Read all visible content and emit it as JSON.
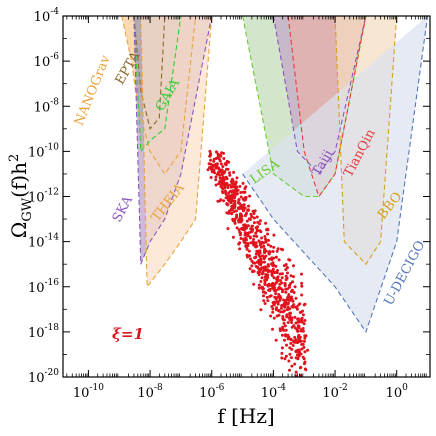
{
  "chart_data": {
    "type": "area",
    "xlabel": "f [Hz]",
    "ylabel": "Ω_GW(f)h^2",
    "x_scale": "log",
    "y_scale": "log",
    "xlim": [
      1.5e-11,
      12
    ],
    "ylim": [
      1e-20,
      0.0001
    ],
    "x_tick_labels": [
      "10^{-10}",
      "10^{-8}",
      "10^{-6}",
      "10^{-4}",
      "10^{-2}",
      "10^{0}"
    ],
    "x_ticks": [
      1e-10,
      1e-08,
      1e-06,
      0.0001,
      0.01,
      1
    ],
    "y_tick_labels": [
      "10^{-20}",
      "10^{-18}",
      "10^{-16}",
      "10^{-14}",
      "10^{-12}",
      "10^{-10}",
      "10^{-8}",
      "10^{-6}",
      "10^{-4}"
    ],
    "y_ticks": [
      1e-20,
      1e-18,
      1e-16,
      1e-14,
      1e-12,
      1e-10,
      1e-08,
      1e-06,
      0.0001
    ],
    "annotation": "ξ=1",
    "annotation_color": "#d9141e",
    "series": [
      {
        "name": "NANOGrav",
        "color": "#e8a33c",
        "fill": "#f6c99a",
        "x": [
          1.2e-09,
          2.5e-09,
          4e-09,
          1e-08,
          3e-08,
          1e-07,
          3e-07
        ],
        "y": [
          0.0001,
          1e-06,
          1e-08,
          1e-10,
          1e-11,
          1e-10,
          0.0001
        ]
      },
      {
        "name": "EPTA",
        "color": "#8a6a2e",
        "fill": "#b09050",
        "x": [
          3e-09,
          5e-09,
          1e-08,
          2e-08,
          3e-08
        ],
        "y": [
          0.0001,
          5e-08,
          1e-09,
          3e-09,
          0.0001
        ]
      },
      {
        "name": "GAIA",
        "color": "#33cc33",
        "fill": "#9bd08f",
        "x": [
          3e-09,
          5e-09,
          1e-08,
          3e-08,
          1e-07
        ],
        "y": [
          0.0001,
          1e-10,
          3e-10,
          1e-09,
          0.0001
        ]
      },
      {
        "name": "SKA",
        "color": "#8a55c0",
        "fill": "#b8a0c8",
        "x": [
          3e-09,
          5e-09,
          1e-08,
          3e-08,
          1e-07,
          1e-06
        ],
        "y": [
          0.0001,
          1e-15,
          1e-14,
          1e-13,
          1e-11,
          0.0001
        ]
      },
      {
        "name": "THEIA",
        "color": "#e8a33c",
        "fill": "#fce0c8",
        "x": [
          5e-09,
          8e-09,
          3e-08,
          1e-07,
          3e-07,
          1e-06
        ],
        "y": [
          0.0001,
          1e-16,
          1e-15,
          1e-14,
          1e-13,
          0.0001
        ]
      },
      {
        "name": "LISA",
        "color": "#66cc33",
        "fill": "#c2dcb8",
        "x": [
          1e-05,
          0.0001,
          0.001,
          0.003,
          0.01,
          0.1
        ],
        "y": [
          0.0001,
          1e-11,
          1e-12,
          1e-12,
          1e-11,
          0.0001
        ]
      },
      {
        "name": "Taiji",
        "color": "#8a55c0",
        "fill": "#c4a8c6",
        "x": [
          0.0001,
          0.0006,
          0.003,
          0.01,
          0.1
        ],
        "y": [
          0.0001,
          1e-10,
          1e-11,
          1e-10,
          0.0001
        ]
      },
      {
        "name": "TianQin",
        "color": "#e83c3c",
        "fill": "#e8b0a8",
        "x": [
          0.0003,
          0.001,
          0.003,
          0.01,
          0.1
        ],
        "y": [
          0.0001,
          1e-10,
          1e-12,
          1e-11,
          0.0001
        ]
      },
      {
        "name": "BBO",
        "color": "#d9a020",
        "fill": "#f2dcc0",
        "x": [
          0.01,
          0.02,
          0.1,
          0.3,
          1
        ],
        "y": [
          0.0001,
          1e-14,
          1e-15,
          1e-14,
          0.0001
        ]
      },
      {
        "name": "U-DECIGO",
        "color": "#5577bb",
        "fill": "#dbe2ee",
        "x": [
          1e-05,
          0.0001,
          0.01,
          0.1,
          1,
          10
        ],
        "y": [
          1e-11,
          1e-13,
          1e-16,
          1e-18,
          1e-14,
          0.0001
        ]
      }
    ],
    "scatter": {
      "name": "",
      "color": "#e0141e",
      "x_range": [
        1e-06,
        0.001
      ],
      "y_range": [
        1e-20,
        1e-10
      ]
    }
  }
}
